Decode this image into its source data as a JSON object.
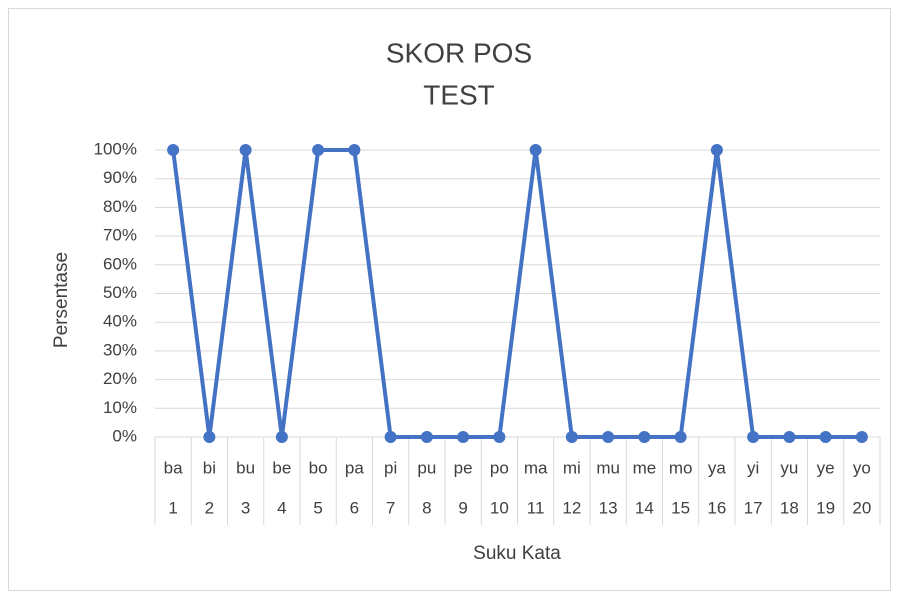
{
  "chart_data": {
    "type": "line",
    "title": [
      "SKOR POS",
      "TEST"
    ],
    "x_label": "Suku Kata",
    "y_label": "Persentase",
    "categories": [
      "ba",
      "bi",
      "bu",
      "be",
      "bo",
      "pa",
      "pi",
      "pu",
      "pe",
      "po",
      "ma",
      "mi",
      "mu",
      "me",
      "mo",
      "ya",
      "yi",
      "yu",
      "ye",
      "yo"
    ],
    "category_numbers": [
      1,
      2,
      3,
      4,
      5,
      6,
      7,
      8,
      9,
      10,
      11,
      12,
      13,
      14,
      15,
      16,
      17,
      18,
      19,
      20
    ],
    "values": [
      100,
      0,
      100,
      0,
      100,
      100,
      0,
      0,
      0,
      0,
      100,
      0,
      0,
      0,
      0,
      100,
      0,
      0,
      0,
      0
    ],
    "color": "#4472c4",
    "ylim": [
      0,
      100
    ],
    "yticks": [
      {
        "value": 0,
        "label": "0%"
      },
      {
        "value": 10,
        "label": "10%"
      },
      {
        "value": 20,
        "label": "20%"
      },
      {
        "value": 30,
        "label": "30%"
      },
      {
        "value": 40,
        "label": "40%"
      },
      {
        "value": 50,
        "label": "50%"
      },
      {
        "value": 60,
        "label": "60%"
      },
      {
        "value": 70,
        "label": "70%"
      },
      {
        "value": 80,
        "label": "80%"
      },
      {
        "value": 90,
        "label": "90%"
      },
      {
        "value": 100,
        "label": "100%"
      }
    ],
    "grid": true
  }
}
